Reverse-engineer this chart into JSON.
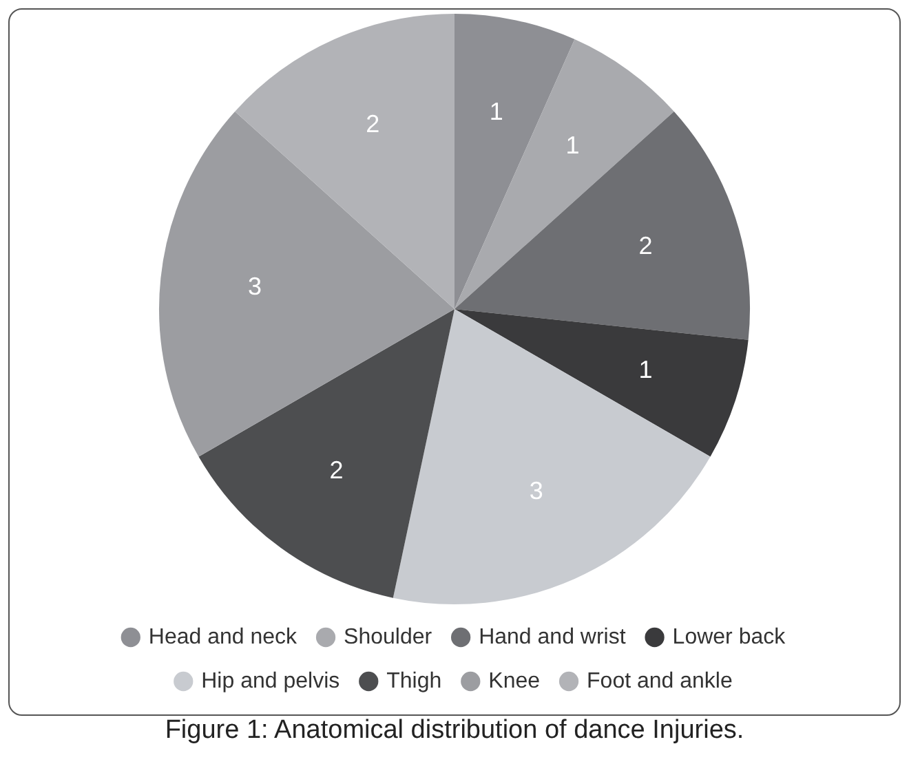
{
  "chart_data": {
    "type": "pie",
    "categories": [
      "Head and neck",
      "Shoulder",
      "Hand and wrist",
      "Lower back",
      "Hip and pelvis",
      "Thigh",
      "Knee",
      "Foot and ankle"
    ],
    "values": [
      1,
      1,
      2,
      1,
      3,
      2,
      3,
      2
    ],
    "colors": [
      "#8e8f94",
      "#a9aaae",
      "#6e6f73",
      "#3a3a3c",
      "#c8cbd0",
      "#4d4e50",
      "#9c9da1",
      "#b2b3b7"
    ],
    "data_labels": true,
    "legend": "bottom",
    "annotations": [
      "Figure 1: Anatomical distribution of dance Injuries."
    ]
  }
}
